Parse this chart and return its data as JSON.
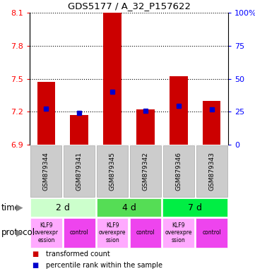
{
  "title": "GDS5177 / A_32_P157622",
  "samples": [
    "GSM879344",
    "GSM879341",
    "GSM879345",
    "GSM879342",
    "GSM879346",
    "GSM879343"
  ],
  "transformed_counts": [
    7.47,
    7.17,
    8.1,
    7.22,
    7.52,
    7.3
  ],
  "percentile_ranks": [
    7.23,
    7.19,
    7.38,
    7.21,
    7.25,
    7.22
  ],
  "ylim": [
    6.9,
    8.1
  ],
  "yticks": [
    6.9,
    7.2,
    7.5,
    7.8,
    8.1
  ],
  "right_yticks": [
    0,
    25,
    50,
    75,
    100
  ],
  "bar_color": "#cc0000",
  "marker_color": "#0000cc",
  "time_groups": [
    {
      "label": "2 d",
      "cols": [
        0,
        1
      ],
      "color": "#ccffcc"
    },
    {
      "label": "4 d",
      "cols": [
        2,
        3
      ],
      "color": "#55dd55"
    },
    {
      "label": "7 d",
      "cols": [
        4,
        5
      ],
      "color": "#00ee44"
    }
  ],
  "protocol_groups": [
    {
      "label": "KLF9\noverexpr\nession",
      "col": 0,
      "color": "#ffaaff"
    },
    {
      "label": "control",
      "col": 1,
      "color": "#ee44ee"
    },
    {
      "label": "KLF9\noverexpre\nssion",
      "col": 2,
      "color": "#ffaaff"
    },
    {
      "label": "control",
      "col": 3,
      "color": "#ee44ee"
    },
    {
      "label": "KLF9\noverexpre\nssion",
      "col": 4,
      "color": "#ffaaff"
    },
    {
      "label": "control",
      "col": 5,
      "color": "#ee44ee"
    }
  ],
  "sample_box_color": "#cccccc",
  "legend_items": [
    {
      "color": "#cc0000",
      "label": "transformed count"
    },
    {
      "color": "#0000cc",
      "label": "percentile rank within the sample"
    }
  ],
  "time_label": "time",
  "protocol_label": "protocol",
  "fig_width": 3.61,
  "fig_height": 3.84,
  "dpi": 100
}
